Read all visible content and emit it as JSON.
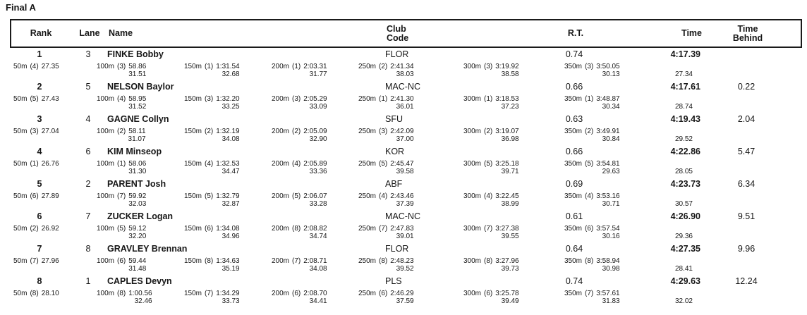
{
  "title": "Final A",
  "header": {
    "rank": "Rank",
    "lane": "Lane",
    "name": "Name",
    "club_line1": "Club",
    "club_line2": "Code",
    "rt": "R.T.",
    "behind_line1": "Time",
    "behind_line2": "Behind",
    "time": "Time"
  },
  "results": [
    {
      "rank": "1",
      "lane": "3",
      "name": "FINKE Bobby",
      "club": "FLOR",
      "rt": "0.74",
      "time": "4:17.39",
      "behind": "",
      "last_lap": "27.34",
      "splits": [
        {
          "dist": "50m",
          "pos": "(4)",
          "cum": "27.35",
          "lap": ""
        },
        {
          "dist": "100m",
          "pos": "(3)",
          "cum": "58.86",
          "lap": "31.51"
        },
        {
          "dist": "150m",
          "pos": "(1)",
          "cum": "1:31.54",
          "lap": "32.68"
        },
        {
          "dist": "200m",
          "pos": "(1)",
          "cum": "2:03.31",
          "lap": "31.77"
        },
        {
          "dist": "250m",
          "pos": "(2)",
          "cum": "2:41.34",
          "lap": "38.03"
        },
        {
          "dist": "300m",
          "pos": "(3)",
          "cum": "3:19.92",
          "lap": "38.58"
        },
        {
          "dist": "350m",
          "pos": "(3)",
          "cum": "3:50.05",
          "lap": "30.13"
        }
      ]
    },
    {
      "rank": "2",
      "lane": "5",
      "name": "NELSON Baylor",
      "club": "MAC-NC",
      "rt": "0.66",
      "time": "4:17.61",
      "behind": "0.22",
      "last_lap": "28.74",
      "splits": [
        {
          "dist": "50m",
          "pos": "(5)",
          "cum": "27.43",
          "lap": ""
        },
        {
          "dist": "100m",
          "pos": "(4)",
          "cum": "58.95",
          "lap": "31.52"
        },
        {
          "dist": "150m",
          "pos": "(3)",
          "cum": "1:32.20",
          "lap": "33.25"
        },
        {
          "dist": "200m",
          "pos": "(3)",
          "cum": "2:05.29",
          "lap": "33.09"
        },
        {
          "dist": "250m",
          "pos": "(1)",
          "cum": "2:41.30",
          "lap": "36.01"
        },
        {
          "dist": "300m",
          "pos": "(1)",
          "cum": "3:18.53",
          "lap": "37.23"
        },
        {
          "dist": "350m",
          "pos": "(1)",
          "cum": "3:48.87",
          "lap": "30.34"
        }
      ]
    },
    {
      "rank": "3",
      "lane": "4",
      "name": "GAGNE Collyn",
      "club": "SFU",
      "rt": "0.63",
      "time": "4:19.43",
      "behind": "2.04",
      "last_lap": "29.52",
      "splits": [
        {
          "dist": "50m",
          "pos": "(3)",
          "cum": "27.04",
          "lap": ""
        },
        {
          "dist": "100m",
          "pos": "(2)",
          "cum": "58.11",
          "lap": "31.07"
        },
        {
          "dist": "150m",
          "pos": "(2)",
          "cum": "1:32.19",
          "lap": "34.08"
        },
        {
          "dist": "200m",
          "pos": "(2)",
          "cum": "2:05.09",
          "lap": "32.90"
        },
        {
          "dist": "250m",
          "pos": "(3)",
          "cum": "2:42.09",
          "lap": "37.00"
        },
        {
          "dist": "300m",
          "pos": "(2)",
          "cum": "3:19.07",
          "lap": "36.98"
        },
        {
          "dist": "350m",
          "pos": "(2)",
          "cum": "3:49.91",
          "lap": "30.84"
        }
      ]
    },
    {
      "rank": "4",
      "lane": "6",
      "name": "KIM Minseop",
      "club": "KOR",
      "rt": "0.66",
      "time": "4:22.86",
      "behind": "5.47",
      "last_lap": "28.05",
      "splits": [
        {
          "dist": "50m",
          "pos": "(1)",
          "cum": "26.76",
          "lap": ""
        },
        {
          "dist": "100m",
          "pos": "(1)",
          "cum": "58.06",
          "lap": "31.30"
        },
        {
          "dist": "150m",
          "pos": "(4)",
          "cum": "1:32.53",
          "lap": "34.47"
        },
        {
          "dist": "200m",
          "pos": "(4)",
          "cum": "2:05.89",
          "lap": "33.36"
        },
        {
          "dist": "250m",
          "pos": "(5)",
          "cum": "2:45.47",
          "lap": "39.58"
        },
        {
          "dist": "300m",
          "pos": "(5)",
          "cum": "3:25.18",
          "lap": "39.71"
        },
        {
          "dist": "350m",
          "pos": "(5)",
          "cum": "3:54.81",
          "lap": "29.63"
        }
      ]
    },
    {
      "rank": "5",
      "lane": "2",
      "name": "PARENT Josh",
      "club": "ABF",
      "rt": "0.69",
      "time": "4:23.73",
      "behind": "6.34",
      "last_lap": "30.57",
      "splits": [
        {
          "dist": "50m",
          "pos": "(6)",
          "cum": "27.89",
          "lap": ""
        },
        {
          "dist": "100m",
          "pos": "(7)",
          "cum": "59.92",
          "lap": "32.03"
        },
        {
          "dist": "150m",
          "pos": "(5)",
          "cum": "1:32.79",
          "lap": "32.87"
        },
        {
          "dist": "200m",
          "pos": "(5)",
          "cum": "2:06.07",
          "lap": "33.28"
        },
        {
          "dist": "250m",
          "pos": "(4)",
          "cum": "2:43.46",
          "lap": "37.39"
        },
        {
          "dist": "300m",
          "pos": "(4)",
          "cum": "3:22.45",
          "lap": "38.99"
        },
        {
          "dist": "350m",
          "pos": "(4)",
          "cum": "3:53.16",
          "lap": "30.71"
        }
      ]
    },
    {
      "rank": "6",
      "lane": "7",
      "name": "ZUCKER Logan",
      "club": "MAC-NC",
      "rt": "0.61",
      "time": "4:26.90",
      "behind": "9.51",
      "last_lap": "29.36",
      "splits": [
        {
          "dist": "50m",
          "pos": "(2)",
          "cum": "26.92",
          "lap": ""
        },
        {
          "dist": "100m",
          "pos": "(5)",
          "cum": "59.12",
          "lap": "32.20"
        },
        {
          "dist": "150m",
          "pos": "(6)",
          "cum": "1:34.08",
          "lap": "34.96"
        },
        {
          "dist": "200m",
          "pos": "(8)",
          "cum": "2:08.82",
          "lap": "34.74"
        },
        {
          "dist": "250m",
          "pos": "(7)",
          "cum": "2:47.83",
          "lap": "39.01"
        },
        {
          "dist": "300m",
          "pos": "(7)",
          "cum": "3:27.38",
          "lap": "39.55"
        },
        {
          "dist": "350m",
          "pos": "(6)",
          "cum": "3:57.54",
          "lap": "30.16"
        }
      ]
    },
    {
      "rank": "7",
      "lane": "8",
      "name": "GRAVLEY Brennan",
      "club": "FLOR",
      "rt": "0.64",
      "time": "4:27.35",
      "behind": "9.96",
      "last_lap": "28.41",
      "splits": [
        {
          "dist": "50m",
          "pos": "(7)",
          "cum": "27.96",
          "lap": ""
        },
        {
          "dist": "100m",
          "pos": "(6)",
          "cum": "59.44",
          "lap": "31.48"
        },
        {
          "dist": "150m",
          "pos": "(8)",
          "cum": "1:34.63",
          "lap": "35.19"
        },
        {
          "dist": "200m",
          "pos": "(7)",
          "cum": "2:08.71",
          "lap": "34.08"
        },
        {
          "dist": "250m",
          "pos": "(8)",
          "cum": "2:48.23",
          "lap": "39.52"
        },
        {
          "dist": "300m",
          "pos": "(8)",
          "cum": "3:27.96",
          "lap": "39.73"
        },
        {
          "dist": "350m",
          "pos": "(8)",
          "cum": "3:58.94",
          "lap": "30.98"
        }
      ]
    },
    {
      "rank": "8",
      "lane": "1",
      "name": "CAPLES Devyn",
      "club": "PLS",
      "rt": "0.74",
      "time": "4:29.63",
      "behind": "12.24",
      "last_lap": "32.02",
      "splits": [
        {
          "dist": "50m",
          "pos": "(8)",
          "cum": "28.10",
          "lap": ""
        },
        {
          "dist": "100m",
          "pos": "(8)",
          "cum": "1:00.56",
          "lap": "32.46"
        },
        {
          "dist": "150m",
          "pos": "(7)",
          "cum": "1:34.29",
          "lap": "33.73"
        },
        {
          "dist": "200m",
          "pos": "(6)",
          "cum": "2:08.70",
          "lap": "34.41"
        },
        {
          "dist": "250m",
          "pos": "(6)",
          "cum": "2:46.29",
          "lap": "37.59"
        },
        {
          "dist": "300m",
          "pos": "(6)",
          "cum": "3:25.78",
          "lap": "39.49"
        },
        {
          "dist": "350m",
          "pos": "(7)",
          "cum": "3:57.61",
          "lap": "31.83"
        }
      ]
    }
  ]
}
